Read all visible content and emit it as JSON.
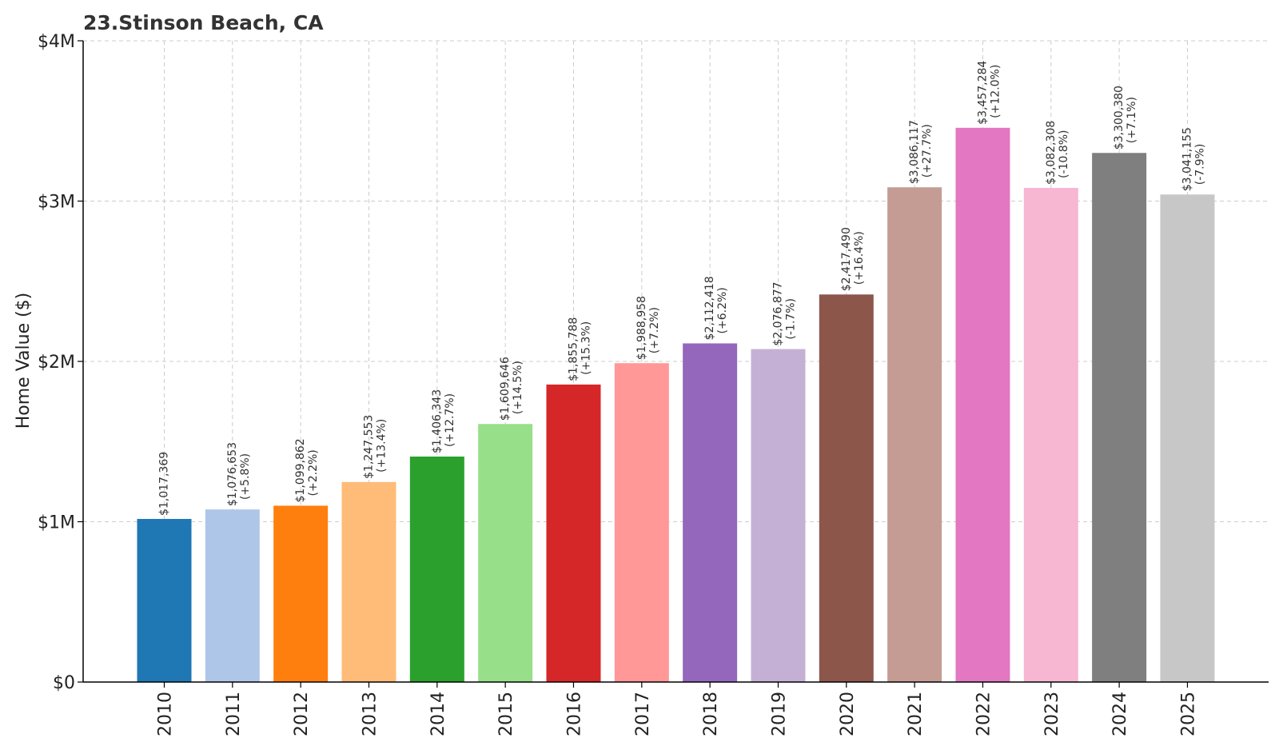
{
  "chart_data": {
    "type": "bar",
    "title": "23.Stinson Beach, CA",
    "xlabel": "",
    "ylabel": "Home Value ($)",
    "ylim": [
      0,
      4000000
    ],
    "y_ticks": [
      {
        "value": 0,
        "label": "$0"
      },
      {
        "value": 1000000,
        "label": "$1M"
      },
      {
        "value": 2000000,
        "label": "$2M"
      },
      {
        "value": 3000000,
        "label": "$3M"
      },
      {
        "value": 4000000,
        "label": "$4M"
      }
    ],
    "grid": true,
    "legend": "none",
    "categories": [
      "2010",
      "2011",
      "2012",
      "2013",
      "2014",
      "2015",
      "2016",
      "2017",
      "2018",
      "2019",
      "2020",
      "2021",
      "2022",
      "2023",
      "2024",
      "2025"
    ],
    "values": [
      1017369,
      1076653,
      1099862,
      1247553,
      1406343,
      1609646,
      1855788,
      1988958,
      2112418,
      2076877,
      2417490,
      3086117,
      3457284,
      3082308,
      3300380,
      3041155
    ],
    "value_labels": [
      "$1,017,369",
      "$1,076,653",
      "$1,099,862",
      "$1,247,553",
      "$1,406,343",
      "$1,609,646",
      "$1,855,788",
      "$1,988,958",
      "$2,112,418",
      "$2,076,877",
      "$2,417,490",
      "$3,086,117",
      "$3,457,284",
      "$3,082,308",
      "$3,300,380",
      "$3,041,155"
    ],
    "change_labels": [
      "",
      "(+5.8%)",
      "(+2.2%)",
      "(+13.4%)",
      "(+12.7%)",
      "(+14.5%)",
      "(+15.3%)",
      "(+7.2%)",
      "(+6.2%)",
      "(-1.7%)",
      "(+16.4%)",
      "(+27.7%)",
      "(+12.0%)",
      "(-10.8%)",
      "(+7.1%)",
      "(-7.9%)"
    ],
    "colors": [
      "#1f77b4",
      "#aec7e8",
      "#ff7f0e",
      "#ffbb78",
      "#2ca02c",
      "#98df8a",
      "#d62728",
      "#ff9896",
      "#9467bd",
      "#c5b0d5",
      "#8c564b",
      "#c49c94",
      "#e377c2",
      "#f7b6d2",
      "#7f7f7f",
      "#c7c7c7"
    ]
  }
}
